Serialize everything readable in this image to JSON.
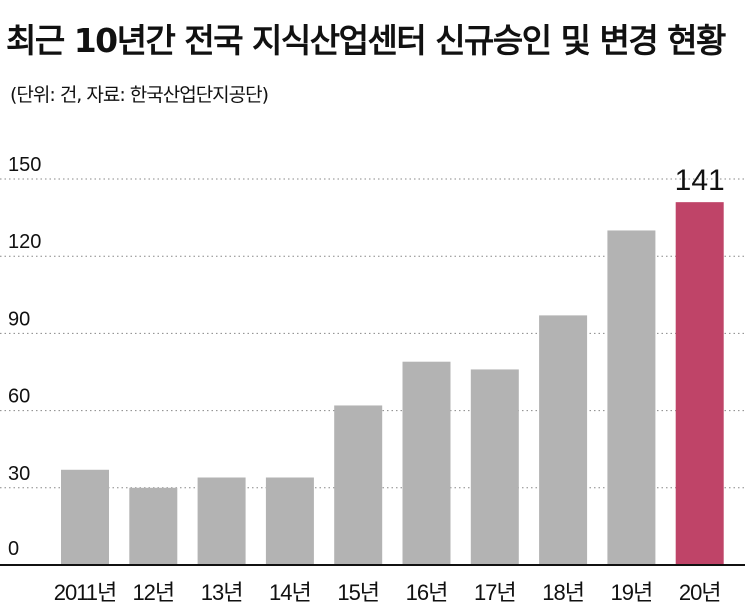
{
  "title": {
    "main": "최근 10년간 전국 지식산업센터 신규승인 및 변경 현황",
    "note": "(단위: 건, 자료: 한국산업단지공단)"
  },
  "colors": {
    "bar": "#b3b3b3",
    "highlight": "#bf4468",
    "grid": "#888888",
    "axis": "#111111"
  },
  "chart_data": {
    "type": "bar",
    "title": "최근 10년간 전국 지식산업센터 신규승인 및 변경 현황",
    "subtitle": "(단위: 건, 자료: 한국산업단지공단)",
    "categories": [
      "2011년",
      "12년",
      "13년",
      "14년",
      "15년",
      "16년",
      "17년",
      "18년",
      "19년",
      "20년"
    ],
    "values": [
      37,
      30,
      34,
      34,
      62,
      79,
      76,
      97,
      130,
      141
    ],
    "highlight_index": 9,
    "data_labels": [
      {
        "index": 9,
        "text": "141"
      }
    ],
    "yticks": [
      "0",
      "30",
      "60",
      "90",
      "120",
      "150"
    ],
    "ylim": [
      0,
      150
    ],
    "xlabel": "",
    "ylabel": "",
    "grid": "dotted horizontal"
  }
}
